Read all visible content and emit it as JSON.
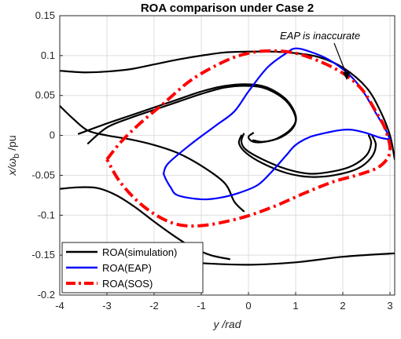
{
  "chart_data": {
    "type": "line",
    "title": "ROA comparison under Case 2",
    "xlabel": "y /rad",
    "ylabel_parts": {
      "var": "x/",
      "sym": "ω",
      "sub": "b",
      "unit": " /pu"
    },
    "xlim": [
      -4,
      3.1
    ],
    "ylim": [
      -0.2,
      0.15
    ],
    "xticks": [
      "-4",
      "-3",
      "-2",
      "-1",
      "0",
      "1",
      "2",
      "3"
    ],
    "yticks": [
      "-0.2",
      "-0.15",
      "-0.1",
      "-0.05",
      "0",
      "0.05",
      "0.1",
      "0.15"
    ],
    "grid": true,
    "legend_position": "bottom-left",
    "annotation": "EAP is inaccurate",
    "series": [
      {
        "name": "ROA(simulation)",
        "color": "#000000",
        "style": "solid",
        "curves": [
          [
            [
              -4.0,
              0.081
            ],
            [
              -3.5,
              0.079
            ],
            [
              -3.0,
              0.08
            ],
            [
              -2.5,
              0.083
            ],
            [
              -2.0,
              0.089
            ],
            [
              -1.5,
              0.095
            ],
            [
              -1.0,
              0.1
            ],
            [
              -0.5,
              0.104
            ],
            [
              0.0,
              0.105
            ],
            [
              0.5,
              0.105
            ],
            [
              1.0,
              0.103
            ],
            [
              1.5,
              0.098
            ],
            [
              2.0,
              0.085
            ],
            [
              2.5,
              0.06
            ],
            [
              2.8,
              0.03
            ],
            [
              3.0,
              0.0
            ],
            [
              3.1,
              -0.03
            ]
          ],
          [
            [
              -4.0,
              0.037
            ],
            [
              -3.7,
              0.02
            ],
            [
              -3.4,
              0.006
            ],
            [
              -3.0,
              0.0
            ],
            [
              -2.5,
              -0.005
            ],
            [
              -2.0,
              -0.012
            ],
            [
              -1.5,
              -0.022
            ],
            [
              -1.0,
              -0.038
            ],
            [
              -0.5,
              -0.06
            ],
            [
              -0.3,
              -0.083
            ],
            [
              -0.1,
              -0.095
            ]
          ],
          [
            [
              -4.0,
              -0.067
            ],
            [
              -3.6,
              -0.065
            ],
            [
              -3.2,
              -0.066
            ],
            [
              -2.8,
              -0.075
            ],
            [
              -2.4,
              -0.09
            ],
            [
              -2.0,
              -0.108
            ],
            [
              -1.6,
              -0.125
            ],
            [
              -1.2,
              -0.14
            ],
            [
              -0.8,
              -0.15
            ],
            [
              -0.4,
              -0.155
            ]
          ],
          [
            [
              -1.7,
              -0.156
            ],
            [
              -1.0,
              -0.16
            ],
            [
              0.0,
              -0.162
            ],
            [
              1.0,
              -0.159
            ],
            [
              2.0,
              -0.152
            ],
            [
              3.0,
              -0.148
            ],
            [
              3.1,
              -0.148
            ]
          ],
          [
            [
              -3.6,
              0.002
            ],
            [
              -3.0,
              0.015
            ],
            [
              -2.5,
              0.025
            ],
            [
              -2.0,
              0.035
            ],
            [
              -1.5,
              0.045
            ],
            [
              -1.0,
              0.055
            ],
            [
              -0.5,
              0.062
            ],
            [
              0.0,
              0.064
            ],
            [
              0.4,
              0.06
            ],
            [
              0.8,
              0.045
            ],
            [
              1.0,
              0.025
            ],
            [
              0.95,
              0.01
            ],
            [
              0.7,
              -0.002
            ],
            [
              0.35,
              -0.008
            ],
            [
              0.1,
              -0.008
            ],
            [
              0.0,
              -0.002
            ],
            [
              0.1,
              0.003
            ]
          ],
          [
            [
              -3.4,
              -0.01
            ],
            [
              -3.0,
              0.01
            ],
            [
              -2.5,
              0.022
            ],
            [
              -2.0,
              0.032
            ],
            [
              -1.5,
              0.042
            ],
            [
              -1.0,
              0.052
            ],
            [
              -0.5,
              0.06
            ],
            [
              0.0,
              0.062
            ],
            [
              0.4,
              0.058
            ],
            [
              0.8,
              0.043
            ],
            [
              1.0,
              0.022
            ],
            [
              0.9,
              0.008
            ],
            [
              0.6,
              -0.004
            ],
            [
              0.3,
              -0.008
            ],
            [
              0.1,
              -0.006
            ]
          ],
          [
            [
              -0.1,
              0.002
            ],
            [
              -0.15,
              -0.008
            ],
            [
              -0.05,
              -0.018
            ],
            [
              0.3,
              -0.03
            ],
            [
              0.8,
              -0.042
            ],
            [
              1.3,
              -0.048
            ],
            [
              1.8,
              -0.045
            ],
            [
              2.2,
              -0.038
            ],
            [
              2.5,
              -0.025
            ],
            [
              2.6,
              -0.01
            ],
            [
              2.55,
              0.0
            ]
          ],
          [
            [
              -0.15,
              0.0
            ],
            [
              -0.2,
              -0.01
            ],
            [
              -0.05,
              -0.022
            ],
            [
              0.3,
              -0.035
            ],
            [
              0.8,
              -0.047
            ],
            [
              1.3,
              -0.052
            ],
            [
              1.8,
              -0.05
            ],
            [
              2.3,
              -0.042
            ],
            [
              2.6,
              -0.028
            ],
            [
              2.7,
              -0.012
            ],
            [
              2.62,
              0.0
            ]
          ]
        ]
      },
      {
        "name": "ROA(EAP)",
        "color": "#0000ff",
        "style": "solid",
        "curves": [
          [
            [
              -1.8,
              -0.048
            ],
            [
              -1.75,
              -0.055
            ],
            [
              -1.65,
              -0.065
            ],
            [
              -1.5,
              -0.075
            ],
            [
              -1.0,
              -0.08
            ],
            [
              -0.6,
              -0.078
            ],
            [
              -0.2,
              -0.072
            ],
            [
              0.2,
              -0.062
            ],
            [
              0.5,
              -0.045
            ],
            [
              0.8,
              -0.025
            ],
            [
              1.0,
              -0.012
            ],
            [
              1.3,
              -0.002
            ],
            [
              1.7,
              0.004
            ],
            [
              2.0,
              0.007
            ],
            [
              2.2,
              0.007
            ],
            [
              2.5,
              0.003
            ],
            [
              2.8,
              -0.003
            ],
            [
              3.0,
              -0.005
            ]
          ],
          [
            [
              -1.8,
              -0.048
            ],
            [
              -1.7,
              -0.035
            ],
            [
              -1.2,
              -0.01
            ],
            [
              -0.7,
              0.012
            ],
            [
              -0.3,
              0.03
            ],
            [
              0.0,
              0.055
            ],
            [
              0.4,
              0.085
            ],
            [
              0.8,
              0.103
            ],
            [
              1.0,
              0.109
            ],
            [
              1.3,
              0.105
            ],
            [
              1.7,
              0.095
            ],
            [
              2.1,
              0.078
            ],
            [
              2.4,
              0.058
            ],
            [
              2.7,
              0.028
            ],
            [
              2.9,
              0.008
            ],
            [
              3.0,
              -0.005
            ]
          ]
        ]
      },
      {
        "name": "ROA(SOS)",
        "color": "#ff0000",
        "style": "dash-dot",
        "curves": [
          [
            [
              -3.0,
              -0.03
            ],
            [
              -2.7,
              -0.008
            ],
            [
              -2.3,
              0.015
            ],
            [
              -1.8,
              0.04
            ],
            [
              -1.2,
              0.07
            ],
            [
              -0.5,
              0.093
            ],
            [
              0.0,
              0.103
            ],
            [
              0.5,
              0.106
            ],
            [
              1.0,
              0.103
            ],
            [
              1.5,
              0.093
            ],
            [
              2.0,
              0.078
            ],
            [
              2.4,
              0.058
            ],
            [
              2.7,
              0.03
            ],
            [
              2.9,
              0.008
            ],
            [
              3.0,
              -0.02
            ],
            [
              2.8,
              -0.038
            ],
            [
              2.4,
              -0.048
            ],
            [
              1.8,
              -0.058
            ],
            [
              1.2,
              -0.072
            ],
            [
              0.5,
              -0.09
            ],
            [
              -0.2,
              -0.104
            ],
            [
              -1.0,
              -0.113
            ],
            [
              -1.6,
              -0.11
            ],
            [
              -2.2,
              -0.09
            ],
            [
              -2.7,
              -0.06
            ],
            [
              -3.0,
              -0.03
            ]
          ]
        ]
      }
    ]
  }
}
